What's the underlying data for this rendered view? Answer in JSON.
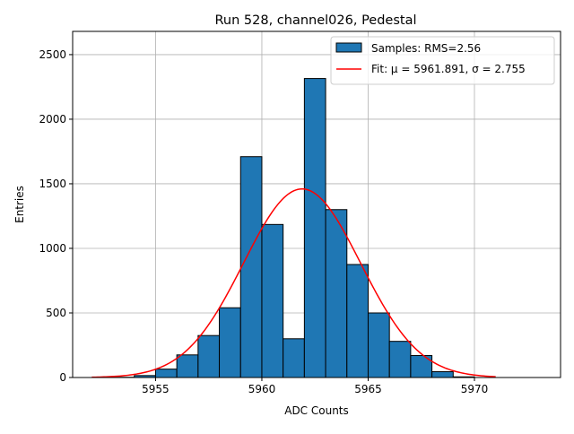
{
  "chart_data": {
    "type": "bar",
    "title": "Run 528, channel026, Pedestal",
    "xlabel": "ADC Counts",
    "ylabel": "Entries",
    "xlim": [
      5951.1,
      5974.05
    ],
    "ylim": [
      0,
      2680
    ],
    "grid": true,
    "xticks": [
      5955,
      5960,
      5965,
      5970
    ],
    "yticks": [
      0,
      500,
      1000,
      1500,
      2000,
      2500
    ],
    "histogram": {
      "name": "Samples: RMS=2.56",
      "color": "#1f77b4",
      "bin_edges": [
        5953,
        5954,
        5955,
        5956,
        5957,
        5958,
        5959,
        5960,
        5961,
        5962,
        5963,
        5964,
        5965,
        5966,
        5967,
        5968,
        5969,
        5970
      ],
      "counts": [
        2,
        15,
        65,
        175,
        325,
        540,
        1710,
        1185,
        300,
        2315,
        1300,
        875,
        500,
        280,
        170,
        45,
        5
      ]
    },
    "fit": {
      "name": "Fit: μ = 5961.891, σ = 2.755",
      "color": "#ff0000",
      "mu": 5961.891,
      "sigma": 2.755,
      "amplitude": 1460,
      "range": [
        5952,
        5971
      ]
    },
    "legend": {
      "placement": "top-right",
      "entries": [
        "Samples: RMS=2.56",
        "Fit: μ = 5961.891, σ = 2.755"
      ]
    }
  }
}
